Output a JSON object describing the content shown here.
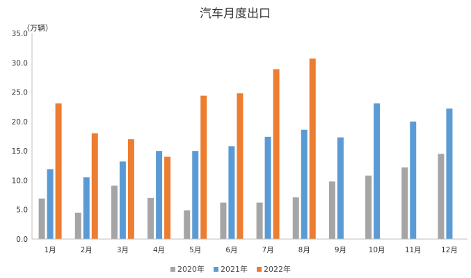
{
  "chart_data": {
    "type": "bar",
    "title": "汽车月度出口",
    "unit_label": "（万辆）",
    "categories": [
      "1月",
      "2月",
      "3月",
      "4月",
      "5月",
      "6月",
      "7月",
      "8月",
      "9月",
      "10月",
      "11月",
      "12月"
    ],
    "y_ticks": [
      "0.0",
      "5.0",
      "10.0",
      "15.0",
      "20.0",
      "25.0",
      "30.0",
      "35.0"
    ],
    "ylim": [
      0,
      35
    ],
    "grid": false,
    "legend_position": "bottom",
    "series": [
      {
        "name": "2020年",
        "color": "#a5a5a5",
        "values": [
          6.9,
          4.5,
          9.1,
          7.0,
          4.9,
          6.2,
          6.2,
          7.1,
          9.8,
          10.8,
          12.2,
          14.5
        ]
      },
      {
        "name": "2021年",
        "color": "#5b9bd5",
        "values": [
          11.9,
          10.5,
          13.2,
          15.0,
          15.0,
          15.8,
          17.4,
          18.6,
          17.3,
          23.1,
          20.0,
          22.2
        ]
      },
      {
        "name": "2022年",
        "color": "#ed7d31",
        "values": [
          23.1,
          18.0,
          17.0,
          14.0,
          24.4,
          24.8,
          28.9,
          30.7,
          null,
          null,
          null,
          null
        ]
      }
    ]
  }
}
